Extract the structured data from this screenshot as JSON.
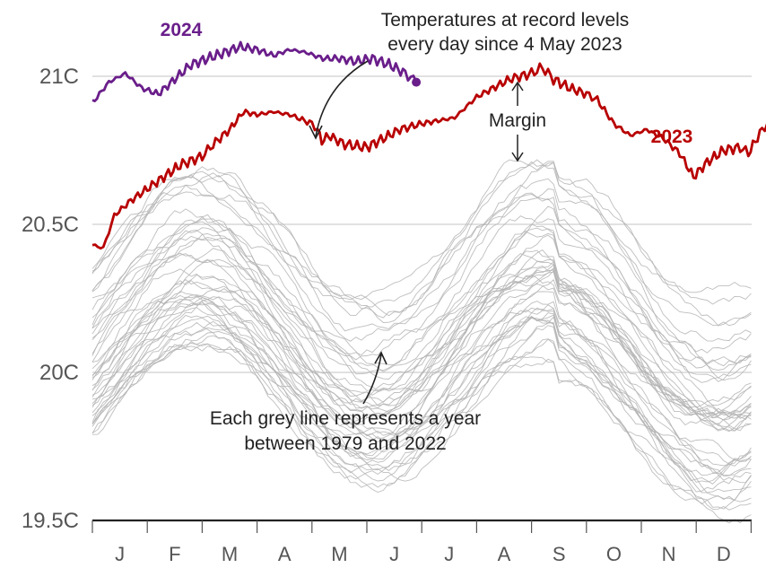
{
  "chart_data": {
    "type": "line",
    "y_unit": "C",
    "ylim": [
      19.5,
      21.15
    ],
    "y_ticks": [
      {
        "value": 21.0,
        "label": "21C"
      },
      {
        "value": 20.5,
        "label": "20.5C"
      },
      {
        "value": 20.0,
        "label": "20C"
      },
      {
        "value": 19.5,
        "label": "19.5C"
      }
    ],
    "x_months": [
      "J",
      "F",
      "M",
      "A",
      "M",
      "J",
      "J",
      "A",
      "S",
      "O",
      "N",
      "D"
    ],
    "grid": true,
    "series": [
      {
        "name": "2023",
        "color": "#b80000",
        "points": [
          [
            0.0,
            20.43
          ],
          [
            0.2,
            20.42
          ],
          [
            0.4,
            20.53
          ],
          [
            0.7,
            20.58
          ],
          [
            1.0,
            20.62
          ],
          [
            1.3,
            20.66
          ],
          [
            1.6,
            20.7
          ],
          [
            2.0,
            20.73
          ],
          [
            2.2,
            20.77
          ],
          [
            2.5,
            20.82
          ],
          [
            2.75,
            20.88
          ],
          [
            3.0,
            20.87
          ],
          [
            3.3,
            20.88
          ],
          [
            3.6,
            20.87
          ],
          [
            4.0,
            20.84
          ],
          [
            4.1,
            20.82
          ],
          [
            4.18,
            20.78
          ],
          [
            4.3,
            20.8
          ],
          [
            4.6,
            20.77
          ],
          [
            5.0,
            20.76
          ],
          [
            5.3,
            20.79
          ],
          [
            5.6,
            20.82
          ],
          [
            6.0,
            20.84
          ],
          [
            6.3,
            20.85
          ],
          [
            6.6,
            20.86
          ],
          [
            7.0,
            20.93
          ],
          [
            7.3,
            20.96
          ],
          [
            7.6,
            20.99
          ],
          [
            8.0,
            21.01
          ],
          [
            8.2,
            21.03
          ],
          [
            8.4,
            20.99
          ],
          [
            8.7,
            20.96
          ],
          [
            9.0,
            20.94
          ],
          [
            9.2,
            20.92
          ],
          [
            9.5,
            20.84
          ],
          [
            9.8,
            20.8
          ],
          [
            10.1,
            20.82
          ],
          [
            10.4,
            20.79
          ],
          [
            10.7,
            20.74
          ],
          [
            10.95,
            20.66
          ],
          [
            11.2,
            20.71
          ],
          [
            11.5,
            20.75
          ],
          [
            11.8,
            20.76
          ],
          [
            11.95,
            20.74
          ],
          [
            12.2,
            20.82
          ],
          [
            12.4,
            20.86
          ],
          [
            12.6,
            20.88
          ]
        ]
      },
      {
        "name": "2024",
        "color": "#6a1e8a",
        "points": [
          [
            0.0,
            20.91
          ],
          [
            0.3,
            20.98
          ],
          [
            0.6,
            21.01
          ],
          [
            0.9,
            20.96
          ],
          [
            1.2,
            20.94
          ],
          [
            1.5,
            20.99
          ],
          [
            1.8,
            21.04
          ],
          [
            2.1,
            21.06
          ],
          [
            2.4,
            21.08
          ],
          [
            2.7,
            21.1
          ],
          [
            3.0,
            21.09
          ],
          [
            3.3,
            21.07
          ],
          [
            3.6,
            21.09
          ],
          [
            3.9,
            21.08
          ],
          [
            4.2,
            21.06
          ],
          [
            4.5,
            21.06
          ],
          [
            4.8,
            21.05
          ],
          [
            5.1,
            21.06
          ],
          [
            5.4,
            21.04
          ],
          [
            5.7,
            21.01
          ],
          [
            5.9,
            20.98
          ]
        ]
      }
    ],
    "background_series_note": "Each grey line represents a year between 1979 and 2022",
    "annotations": [
      {
        "text_lines": [
          "Temperatures at record levels",
          "every day since 4 May 2023"
        ]
      },
      {
        "text_lines": [
          "Margin"
        ]
      },
      {
        "text_lines": [
          "Each grey line represents a year",
          "between 1979 and 2022"
        ]
      }
    ]
  }
}
